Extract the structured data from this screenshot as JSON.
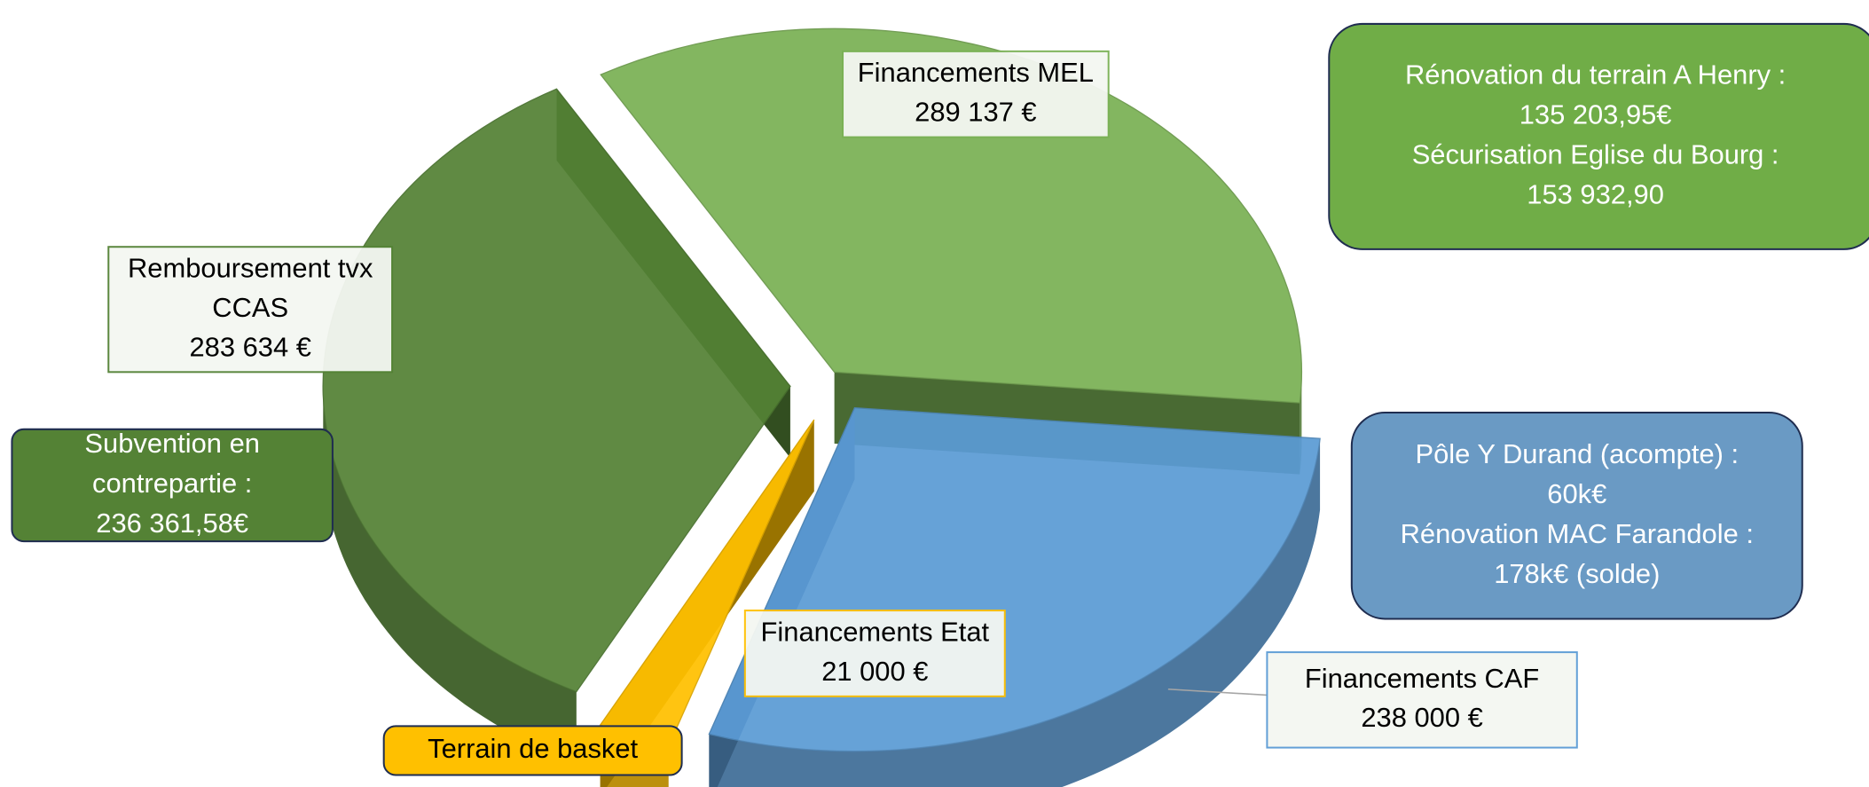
{
  "chart_data": {
    "type": "pie",
    "categories": [
      "Financements MEL",
      "Financements CAF",
      "Financements Etat",
      "Remboursement tvx CCAS"
    ],
    "values": [
      289137,
      238000,
      21000,
      283634
    ],
    "value_labels": [
      "289 137 €",
      "238 000 €",
      "21 000 €",
      "283 634 €"
    ],
    "colors": [
      "#7ab155",
      "#5b9bd5",
      "#ffc000",
      "#548235"
    ],
    "annotations": [
      {
        "lines": [
          "Rénovation du terrain A Henry :",
          "135 203,95€",
          "Sécurisation Eglise du Bourg :",
          "153 932,90"
        ]
      },
      {
        "lines": [
          "Pôle  Y Durand (acompte) :",
          "60k€",
          "Rénovation MAC Farandole :",
          "178k€ (solde)"
        ]
      },
      {
        "lines": [
          "Subvention en",
          "contrepartie :",
          "236 361,58€"
        ]
      },
      {
        "lines": [
          "Terrain de basket"
        ]
      }
    ]
  }
}
